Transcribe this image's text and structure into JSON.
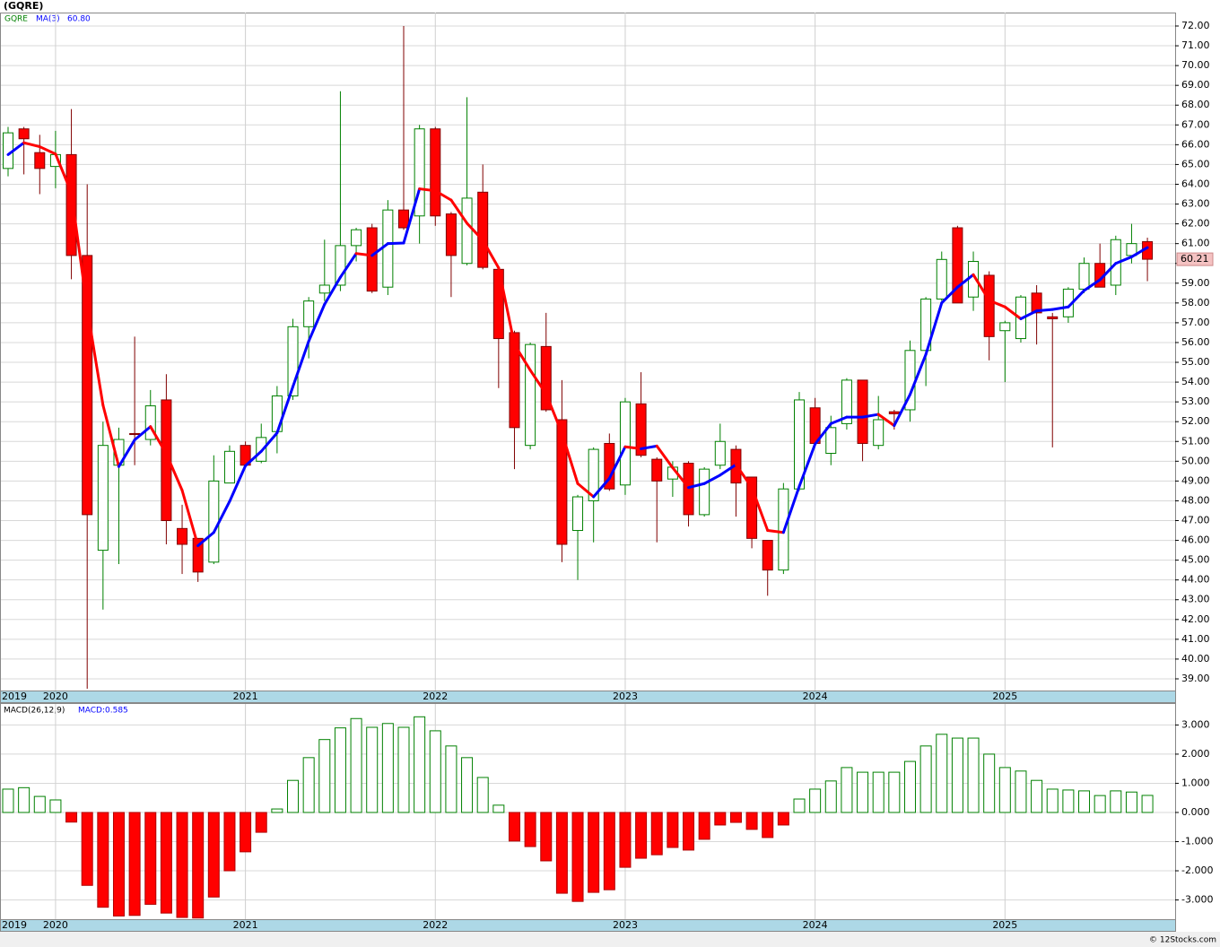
{
  "footer": "© 12Stocks.com",
  "chart_data": [
    {
      "type": "candlestick",
      "title": "(GQRE)",
      "grid": true,
      "categories": [
        "2019",
        null,
        null,
        "2020",
        null,
        null,
        null,
        null,
        null,
        null,
        null,
        null,
        null,
        null,
        null,
        "2021",
        null,
        null,
        null,
        null,
        null,
        null,
        null,
        null,
        null,
        null,
        null,
        "2022",
        null,
        null,
        null,
        null,
        null,
        null,
        null,
        null,
        null,
        null,
        null,
        "2023",
        null,
        null,
        null,
        null,
        null,
        null,
        null,
        null,
        null,
        null,
        null,
        "2024",
        null,
        null,
        null,
        null,
        null,
        null,
        null,
        null,
        null,
        null,
        null,
        "2025",
        null,
        null,
        null,
        null,
        null,
        null,
        null,
        null,
        null
      ],
      "series": [
        {
          "name": "GQRE",
          "color": "#008000",
          "down_color": "#ff0000",
          "open": [
            64.8,
            66.8,
            65.6,
            64.9,
            65.5,
            60.4,
            45.5,
            49.8,
            51.4,
            51.1,
            53.1,
            46.6,
            46.1,
            44.9,
            48.9,
            50.8,
            50.0,
            51.5,
            53.3,
            56.8,
            58.5,
            58.9,
            60.9,
            61.8,
            58.8,
            62.7,
            62.4,
            66.8,
            62.5,
            60.0,
            63.6,
            59.7,
            56.5,
            50.8,
            55.8,
            52.1,
            46.5,
            48.0,
            50.9,
            48.8,
            52.9,
            50.1,
            49.1,
            49.9,
            47.3,
            49.8,
            50.6,
            49.2,
            46.0,
            44.5,
            48.6,
            52.7,
            50.4,
            51.9,
            54.1,
            50.8,
            52.5,
            52.6,
            55.6,
            58.2,
            61.8,
            58.3,
            59.4,
            56.6,
            56.2,
            58.5,
            57.3,
            57.3,
            58.7,
            60.0,
            58.9,
            60.4,
            61.1
          ],
          "high": [
            66.9,
            66.9,
            66.5,
            66.7,
            67.8,
            64.0,
            52.0,
            51.7,
            56.3,
            53.6,
            54.4,
            47.8,
            46.1,
            50.3,
            50.8,
            51.0,
            51.9,
            53.8,
            57.2,
            58.3,
            61.2,
            68.7,
            61.8,
            62.0,
            63.2,
            72.0,
            67.0,
            66.9,
            62.6,
            68.4,
            65.0,
            59.8,
            56.6,
            56.0,
            57.5,
            54.1,
            48.3,
            50.7,
            51.4,
            53.2,
            54.5,
            50.2,
            50.0,
            50.0,
            49.7,
            51.9,
            50.8,
            49.2,
            46.0,
            48.9,
            53.5,
            53.2,
            52.3,
            54.2,
            54.1,
            53.3,
            52.6,
            56.1,
            58.3,
            60.6,
            61.9,
            60.6,
            59.6,
            57.1,
            58.4,
            58.9,
            57.5,
            58.8,
            60.3,
            61.0,
            61.4,
            62.0,
            61.3
          ],
          "low": [
            64.4,
            64.5,
            63.5,
            63.8,
            59.2,
            38.5,
            42.5,
            44.8,
            49.8,
            50.8,
            45.8,
            44.3,
            43.9,
            44.8,
            48.9,
            49.7,
            49.9,
            50.4,
            53.1,
            55.2,
            58.1,
            58.6,
            60.1,
            58.5,
            58.4,
            61.7,
            61.0,
            61.9,
            58.3,
            59.9,
            59.7,
            53.7,
            49.6,
            50.6,
            52.5,
            44.9,
            44.0,
            45.9,
            48.5,
            48.3,
            50.2,
            45.9,
            48.2,
            46.7,
            47.2,
            49.6,
            47.2,
            45.6,
            43.2,
            44.3,
            48.5,
            50.8,
            49.8,
            51.6,
            50.0,
            50.6,
            51.6,
            52.0,
            53.8,
            58.1,
            58.0,
            57.6,
            55.1,
            54.0,
            56.0,
            55.9,
            50.7,
            57.0,
            58.5,
            58.8,
            58.4,
            60.0,
            59.1
          ],
          "close": [
            66.6,
            66.3,
            64.8,
            65.5,
            60.4,
            47.3,
            50.8,
            51.1,
            51.35,
            52.8,
            47.0,
            45.8,
            44.4,
            49.0,
            50.5,
            49.8,
            51.2,
            53.3,
            56.8,
            58.1,
            58.9,
            60.9,
            61.7,
            58.6,
            62.7,
            61.8,
            66.8,
            62.4,
            60.4,
            63.3,
            59.8,
            56.2,
            51.7,
            55.9,
            52.6,
            45.8,
            48.2,
            50.6,
            48.6,
            53.0,
            50.3,
            49.0,
            49.7,
            47.3,
            49.6,
            51.0,
            48.9,
            46.1,
            44.5,
            48.6,
            53.1,
            50.9,
            51.7,
            54.1,
            50.9,
            52.1,
            52.4,
            55.6,
            58.2,
            60.2,
            58.0,
            60.1,
            56.3,
            57.0,
            58.3,
            57.5,
            57.2,
            58.7,
            60.0,
            58.8,
            61.2,
            61.0,
            60.21
          ]
        },
        {
          "name": "MA(3)",
          "color": "#0000ff",
          "down_color": "#ff0000",
          "legend_value": {
            "value": 60.8,
            "label": "60.80"
          },
          "values": [
            65.5,
            66.1,
            65.9,
            65.53,
            63.57,
            57.73,
            52.83,
            49.73,
            51.08,
            51.75,
            50.38,
            48.53,
            45.73,
            46.4,
            47.97,
            49.77,
            50.5,
            51.43,
            53.77,
            56.07,
            57.93,
            59.3,
            60.5,
            60.4,
            61.0,
            61.03,
            63.77,
            63.67,
            63.2,
            62.03,
            61.17,
            59.77,
            55.9,
            54.6,
            53.4,
            51.43,
            48.87,
            48.2,
            49.13,
            50.73,
            50.63,
            50.77,
            49.67,
            48.67,
            48.87,
            49.3,
            49.83,
            48.67,
            46.5,
            46.4,
            48.73,
            50.87,
            51.9,
            52.23,
            52.23,
            52.37,
            51.8,
            53.37,
            55.4,
            58.0,
            58.8,
            59.43,
            58.13,
            57.8,
            57.2,
            57.6,
            57.67,
            57.8,
            58.63,
            59.17,
            60.0,
            60.33,
            60.8
          ]
        }
      ],
      "last_close": {
        "value": 60.21,
        "label": "60.21"
      },
      "ylim": [
        38.41,
        72.68
      ],
      "yticks": [
        {
          "value": 39,
          "label": "39.00"
        },
        {
          "value": 40,
          "label": "40.00"
        },
        {
          "value": 41,
          "label": "41.00"
        },
        {
          "value": 42,
          "label": "42.00"
        },
        {
          "value": 43,
          "label": "43.00"
        },
        {
          "value": 44,
          "label": "44.00"
        },
        {
          "value": 45,
          "label": "45.00"
        },
        {
          "value": 46,
          "label": "46.00"
        },
        {
          "value": 47,
          "label": "47.00"
        },
        {
          "value": 48,
          "label": "48.00"
        },
        {
          "value": 49,
          "label": "49.00"
        },
        {
          "value": 50,
          "label": "50.00"
        },
        {
          "value": 51,
          "label": "51.00"
        },
        {
          "value": 52,
          "label": "52.00"
        },
        {
          "value": 53,
          "label": "53.00"
        },
        {
          "value": 54,
          "label": "54.00"
        },
        {
          "value": 55,
          "label": "55.00"
        },
        {
          "value": 56,
          "label": "56.00"
        },
        {
          "value": 57,
          "label": "57.00"
        },
        {
          "value": 58,
          "label": "58.00"
        },
        {
          "value": 59,
          "label": "59.00"
        },
        {
          "value": 60,
          "label": "60.00"
        },
        {
          "value": 61,
          "label": "61.00"
        },
        {
          "value": 62,
          "label": "62.00"
        },
        {
          "value": 63,
          "label": "63.00"
        },
        {
          "value": 64,
          "label": "64.00"
        },
        {
          "value": 65,
          "label": "65.00"
        },
        {
          "value": 66,
          "label": "66.00"
        },
        {
          "value": 67,
          "label": "67.00"
        },
        {
          "value": 68,
          "label": "68.00"
        },
        {
          "value": 69,
          "label": "69.00"
        },
        {
          "value": 70,
          "label": "70.00"
        },
        {
          "value": 71,
          "label": "71.00"
        },
        {
          "value": 72,
          "label": "72.00"
        }
      ]
    },
    {
      "type": "bar",
      "title": "MACD(26,12,9)",
      "legend_label": "MACD:0.585",
      "grid": true,
      "color": "#008000",
      "negative_color": "#ff0000",
      "categories": [
        "2019",
        null,
        null,
        "2020",
        null,
        null,
        null,
        null,
        null,
        null,
        null,
        null,
        null,
        null,
        null,
        "2021",
        null,
        null,
        null,
        null,
        null,
        null,
        null,
        null,
        null,
        null,
        null,
        "2022",
        null,
        null,
        null,
        null,
        null,
        null,
        null,
        null,
        null,
        null,
        null,
        "2023",
        null,
        null,
        null,
        null,
        null,
        null,
        null,
        null,
        null,
        null,
        null,
        "2024",
        null,
        null,
        null,
        null,
        null,
        null,
        null,
        null,
        null,
        null,
        null,
        "2025",
        null,
        null,
        null,
        null,
        null,
        null,
        null,
        null,
        null
      ],
      "values": [
        0.8,
        0.85,
        0.55,
        0.43,
        -0.33,
        -2.5,
        -3.25,
        -3.55,
        -3.53,
        -3.15,
        -3.45,
        -3.6,
        -3.62,
        -2.9,
        -2.0,
        -1.35,
        -0.68,
        0.12,
        1.1,
        1.88,
        2.5,
        2.9,
        3.22,
        2.92,
        3.05,
        2.92,
        3.28,
        2.8,
        2.28,
        1.88,
        1.2,
        0.25,
        -0.98,
        -1.17,
        -1.66,
        -2.77,
        -3.05,
        -2.74,
        -2.65,
        -1.88,
        -1.57,
        -1.45,
        -1.2,
        -1.29,
        -0.92,
        -0.43,
        -0.34,
        -0.58,
        -0.86,
        -0.43,
        0.46,
        0.8,
        1.08,
        1.54,
        1.38,
        1.38,
        1.38,
        1.75,
        2.28,
        2.68,
        2.55,
        2.55,
        2.0,
        1.54,
        1.42,
        1.1,
        0.8,
        0.77,
        0.74,
        0.58,
        0.74,
        0.7,
        0.585
      ],
      "ylim": [
        -3.66,
        3.72
      ],
      "yticks": [
        {
          "value": -3,
          "label": "-3.000"
        },
        {
          "value": -2,
          "label": "-2.000"
        },
        {
          "value": -1,
          "label": "-1.000"
        },
        {
          "value": 0,
          "label": "0.000"
        },
        {
          "value": 1,
          "label": "1.000"
        },
        {
          "value": 2,
          "label": "2.000"
        },
        {
          "value": 3,
          "label": "3.000"
        }
      ]
    }
  ]
}
